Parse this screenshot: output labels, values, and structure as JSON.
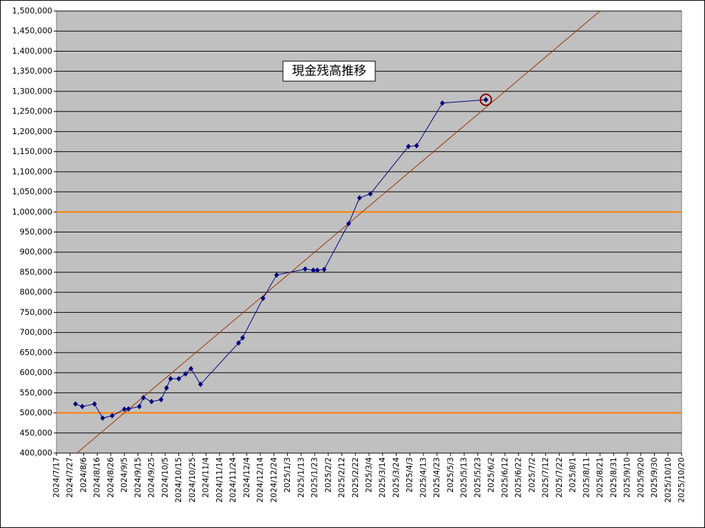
{
  "chart_data": {
    "type": "line",
    "title": "現金残高推移",
    "background": "#c0c0c0",
    "grid": true,
    "grid_color": "#000000",
    "series": [
      {
        "color": "#000080",
        "x": [
          "2024-07-31",
          "2024-08-05",
          "2024-08-14",
          "2024-08-20",
          "2024-08-27",
          "2024-09-05",
          "2024-09-08",
          "2024-09-16",
          "2024-09-19",
          "2024-09-25",
          "2024-10-02",
          "2024-10-06",
          "2024-10-09",
          "2024-10-15",
          "2024-10-20",
          "2024-10-24",
          "2024-10-31",
          "2024-11-28",
          "2024-12-01",
          "2024-12-16",
          "2024-12-26",
          "2025-01-16",
          "2025-01-22",
          "2025-01-25",
          "2025-01-30",
          "2025-02-17",
          "2025-02-25",
          "2025-03-05",
          "2025-04-02",
          "2025-04-08",
          "2025-04-27",
          "2025-05-29"
        ],
        "values": [
          522000,
          516000,
          522000,
          487000,
          493000,
          509000,
          510000,
          516000,
          538000,
          528000,
          533000,
          562000,
          585000,
          585000,
          597000,
          610000,
          571000,
          674000,
          687000,
          785000,
          843000,
          858000,
          855000,
          855000,
          857000,
          971000,
          1035000,
          1045000,
          1163000,
          1165000,
          1271000,
          1279000
        ]
      }
    ],
    "highlighted_point": 31,
    "highlight_color": "#800000",
    "trendline": {
      "color": "#993300",
      "x": [
        "2024-08-01",
        "2025-08-21"
      ],
      "values": [
        400000,
        1500000
      ]
    },
    "reference_lines": {
      "color": "#ff8000",
      "values": [
        1000000,
        500000
      ]
    },
    "ylim": [
      400000,
      1500000
    ],
    "yticks": [
      {
        "value": 400000,
        "label": "400,000"
      },
      {
        "value": 450000,
        "label": "450,000"
      },
      {
        "value": 500000,
        "label": "500,000"
      },
      {
        "value": 550000,
        "label": "550,000"
      },
      {
        "value": 600000,
        "label": "600,000"
      },
      {
        "value": 650000,
        "label": "650,000"
      },
      {
        "value": 700000,
        "label": "700,000"
      },
      {
        "value": 750000,
        "label": "750,000"
      },
      {
        "value": 800000,
        "label": "800,000"
      },
      {
        "value": 850000,
        "label": "850,000"
      },
      {
        "value": 900000,
        "label": "900,000"
      },
      {
        "value": 950000,
        "label": "950,000"
      },
      {
        "value": 1000000,
        "label": "1,000,000"
      },
      {
        "value": 1050000,
        "label": "1,050,000"
      },
      {
        "value": 1100000,
        "label": "1,100,000"
      },
      {
        "value": 1150000,
        "label": "1,150,000"
      },
      {
        "value": 1200000,
        "label": "1,200,000"
      },
      {
        "value": 1250000,
        "label": "1,250,000"
      },
      {
        "value": 1300000,
        "label": "1,300,000"
      },
      {
        "value": 1350000,
        "label": "1,350,000"
      },
      {
        "value": 1400000,
        "label": "1,400,000"
      },
      {
        "value": 1450000,
        "label": "1,450,000"
      },
      {
        "value": 1500000,
        "label": "1,500,000"
      }
    ],
    "xlim": [
      "2024-07-17",
      "2025-10-20"
    ],
    "xticks": [
      {
        "value": "2024-07-17",
        "label": "2024/7/17"
      },
      {
        "value": "2024-07-27",
        "label": "2024/7/27"
      },
      {
        "value": "2024-08-06",
        "label": "2024/8/6"
      },
      {
        "value": "2024-08-16",
        "label": "2024/8/16"
      },
      {
        "value": "2024-08-26",
        "label": "2024/8/26"
      },
      {
        "value": "2024-09-05",
        "label": "2024/9/5"
      },
      {
        "value": "2024-09-15",
        "label": "2024/9/15"
      },
      {
        "value": "2024-09-25",
        "label": "2024/9/25"
      },
      {
        "value": "2024-10-05",
        "label": "2024/10/5"
      },
      {
        "value": "2024-10-15",
        "label": "2024/10/15"
      },
      {
        "value": "2024-10-25",
        "label": "2024/10/25"
      },
      {
        "value": "2024-11-04",
        "label": "2024/11/4"
      },
      {
        "value": "2024-11-14",
        "label": "2024/11/14"
      },
      {
        "value": "2024-11-24",
        "label": "2024/11/24"
      },
      {
        "value": "2024-12-04",
        "label": "2024/12/4"
      },
      {
        "value": "2024-12-14",
        "label": "2024/12/14"
      },
      {
        "value": "2024-12-24",
        "label": "2024/12/24"
      },
      {
        "value": "2025-01-03",
        "label": "2025/1/3"
      },
      {
        "value": "2025-01-13",
        "label": "2025/1/13"
      },
      {
        "value": "2025-01-23",
        "label": "2025/1/23"
      },
      {
        "value": "2025-02-02",
        "label": "2025/2/2"
      },
      {
        "value": "2025-02-12",
        "label": "2025/2/12"
      },
      {
        "value": "2025-02-22",
        "label": "2025/2/22"
      },
      {
        "value": "2025-03-04",
        "label": "2025/3/4"
      },
      {
        "value": "2025-03-14",
        "label": "2025/3/14"
      },
      {
        "value": "2025-03-24",
        "label": "2025/3/24"
      },
      {
        "value": "2025-04-03",
        "label": "2025/4/3"
      },
      {
        "value": "2025-04-13",
        "label": "2025/4/13"
      },
      {
        "value": "2025-04-23",
        "label": "2025/4/23"
      },
      {
        "value": "2025-05-03",
        "label": "2025/5/3"
      },
      {
        "value": "2025-05-13",
        "label": "2025/5/13"
      },
      {
        "value": "2025-05-23",
        "label": "2025/5/23"
      },
      {
        "value": "2025-06-02",
        "label": "2025/6/2"
      },
      {
        "value": "2025-06-12",
        "label": "2025/6/12"
      },
      {
        "value": "2025-06-22",
        "label": "2025/6/22"
      },
      {
        "value": "2025-07-02",
        "label": "2025/7/2"
      },
      {
        "value": "2025-07-12",
        "label": "2025/7/12"
      },
      {
        "value": "2025-07-22",
        "label": "2025/7/22"
      },
      {
        "value": "2025-08-01",
        "label": "2025/8/1"
      },
      {
        "value": "2025-08-11",
        "label": "2025/8/11"
      },
      {
        "value": "2025-08-21",
        "label": "2025/8/21"
      },
      {
        "value": "2025-08-31",
        "label": "2025/8/31"
      },
      {
        "value": "2025-09-10",
        "label": "2025/9/10"
      },
      {
        "value": "2025-09-20",
        "label": "2025/9/20"
      },
      {
        "value": "2025-09-30",
        "label": "2025/9/30"
      },
      {
        "value": "2025-10-10",
        "label": "2025/10/10"
      },
      {
        "value": "2025-10-20",
        "label": "2025/10/20"
      }
    ]
  }
}
